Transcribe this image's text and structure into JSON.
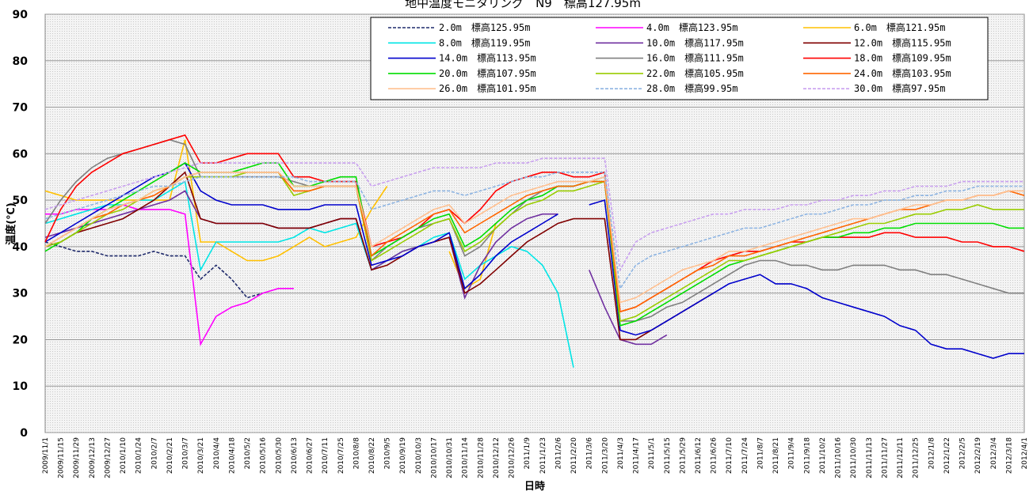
{
  "chart_data": {
    "type": "line",
    "title": "地中温度モニタリング　N9　標高127.95m",
    "x_label": "日時",
    "y_label": "温度(℃)",
    "ylim": [
      0,
      90
    ],
    "yticks": [
      0,
      10,
      20,
      30,
      40,
      50,
      60,
      70,
      80,
      90
    ],
    "grid": true,
    "categories": [
      "2009/11/1",
      "2009/11/15",
      "2009/11/29",
      "2009/12/13",
      "2009/12/27",
      "2010/1/10",
      "2010/1/24",
      "2010/2/7",
      "2010/2/21",
      "2010/3/7",
      "2010/3/21",
      "2010/4/4",
      "2010/4/18",
      "2010/5/2",
      "2010/5/16",
      "2010/5/30",
      "2010/6/13",
      "2010/6/27",
      "2010/7/11",
      "2010/7/25",
      "2010/8/8",
      "2010/8/22",
      "2010/9/5",
      "2010/9/19",
      "2010/10/3",
      "2010/10/17",
      "2010/10/31",
      "2010/11/14",
      "2010/11/28",
      "2010/12/12",
      "2010/12/26",
      "2011/1/9",
      "2011/1/23",
      "2011/2/6",
      "2011/2/20",
      "2011/3/6",
      "2011/3/20",
      "2011/4/3",
      "2011/4/17",
      "2011/5/1",
      "2011/5/15",
      "2011/5/29",
      "2011/6/12",
      "2011/6/26",
      "2011/7/10",
      "2011/7/24",
      "2011/8/7",
      "2011/8/21",
      "2011/9/4",
      "2011/9/18",
      "2011/10/2",
      "2011/10/16",
      "2011/10/30",
      "2011/11/13",
      "2011/11/27",
      "2011/12/11",
      "2011/12/25",
      "2012/1/8",
      "2012/1/22",
      "2012/2/5",
      "2012/2/19",
      "2012/3/4",
      "2012/3/18",
      "2012/4/1"
    ],
    "series": [
      {
        "name": "2.0m　標高125.95m",
        "color": "#1f2a6b",
        "dashed": true,
        "values": [
          41,
          40,
          39,
          39,
          38,
          38,
          38,
          39,
          38,
          38,
          33,
          36,
          33,
          29,
          30,
          null,
          null,
          null,
          null,
          null,
          null,
          null,
          null,
          null,
          null,
          null,
          null,
          null,
          null,
          null,
          null,
          null,
          null,
          null,
          null,
          null,
          null,
          null,
          null,
          null,
          null,
          null,
          null,
          null,
          null,
          null,
          null,
          null,
          null,
          null,
          null,
          null,
          null,
          null,
          null,
          null,
          null,
          null,
          null,
          null,
          null,
          null,
          null,
          null
        ]
      },
      {
        "name": "4.0m　標高123.95m",
        "color": "#ff00ff",
        "dashed": false,
        "values": [
          47,
          47,
          48,
          48,
          48,
          49,
          48,
          48,
          48,
          47,
          19,
          25,
          27,
          28,
          30,
          31,
          31,
          null,
          null,
          null,
          null,
          null,
          null,
          null,
          null,
          null,
          null,
          null,
          null,
          null,
          null,
          null,
          null,
          null,
          null,
          null,
          null,
          null,
          null,
          null,
          null,
          null,
          null,
          null,
          null,
          null,
          null,
          null,
          null,
          null,
          null,
          null,
          null,
          null,
          null,
          null,
          null,
          null,
          null,
          null,
          null,
          null,
          null,
          null
        ]
      },
      {
        "name": "6.0m　標高121.95m",
        "color": "#ffc000",
        "dashed": false,
        "values": [
          52,
          51,
          50,
          50,
          50,
          50,
          50,
          50,
          50,
          63,
          41,
          41,
          39,
          37,
          37,
          38,
          40,
          42,
          40,
          41,
          42,
          48,
          53,
          null,
          null,
          null,
          39,
          31,
          33,
          45,
          null,
          null,
          null,
          null,
          null,
          null,
          null,
          null,
          null,
          null,
          null,
          null,
          null,
          null,
          null,
          null,
          null,
          null,
          null,
          null,
          null,
          null,
          null,
          null,
          null,
          null,
          null,
          null,
          null,
          null,
          null,
          null,
          null,
          null
        ]
      },
      {
        "name": "8.0m　標高119.95m",
        "color": "#00e5e5",
        "dashed": false,
        "values": [
          45,
          46,
          47,
          48,
          49,
          49,
          50,
          50,
          52,
          54,
          35,
          41,
          41,
          41,
          41,
          41,
          42,
          44,
          43,
          44,
          45,
          35,
          37,
          39,
          40,
          42,
          43,
          33,
          36,
          38,
          40,
          39,
          36,
          30,
          14,
          null,
          null,
          null,
          null,
          null,
          null,
          null,
          null,
          null,
          null,
          null,
          null,
          null,
          null,
          null,
          null,
          null,
          null,
          null,
          null,
          null,
          null,
          null,
          null,
          null,
          null,
          null,
          null,
          null
        ]
      },
      {
        "name": "10.0m　標高117.95m",
        "color": "#7030a0",
        "dashed": false,
        "values": [
          42,
          43,
          44,
          45,
          46,
          47,
          48,
          49,
          50,
          52,
          46,
          45,
          45,
          45,
          45,
          44,
          44,
          44,
          45,
          46,
          46,
          35,
          37,
          39,
          40,
          41,
          42,
          29,
          36,
          41,
          44,
          46,
          47,
          47,
          null,
          35,
          27,
          20,
          19,
          19,
          21,
          null,
          null,
          null,
          null,
          null,
          null,
          null,
          null,
          null,
          null,
          null,
          null,
          null,
          null,
          null,
          null,
          null,
          null,
          null,
          null,
          null,
          null,
          null
        ]
      },
      {
        "name": "12.0m　標高115.95m",
        "color": "#800000",
        "dashed": false,
        "values": [
          40,
          41,
          43,
          44,
          45,
          46,
          48,
          50,
          53,
          56,
          46,
          45,
          45,
          45,
          45,
          44,
          44,
          44,
          45,
          46,
          46,
          35,
          36,
          38,
          40,
          41,
          42,
          30,
          32,
          35,
          38,
          41,
          43,
          45,
          46,
          46,
          46,
          20,
          20,
          22,
          24,
          26,
          28,
          30,
          null,
          null,
          null,
          null,
          null,
          null,
          null,
          null,
          null,
          null,
          null,
          null,
          null,
          null,
          null,
          null,
          null,
          null,
          null,
          null
        ]
      },
      {
        "name": "14.0m　標高113.95m",
        "color": "#0000cc",
        "dashed": false,
        "values": [
          41,
          43,
          45,
          47,
          49,
          51,
          53,
          55,
          56,
          58,
          52,
          50,
          49,
          49,
          49,
          48,
          48,
          48,
          49,
          49,
          49,
          36,
          37,
          38,
          40,
          41,
          43,
          31,
          34,
          38,
          41,
          43,
          45,
          47,
          null,
          49,
          50,
          22,
          21,
          22,
          24,
          26,
          28,
          30,
          32,
          33,
          34,
          32,
          32,
          31,
          29,
          28,
          27,
          26,
          25,
          23,
          22,
          19,
          18,
          18,
          17,
          16,
          17,
          17
        ]
      },
      {
        "name": "16.0m　標高111.95m",
        "color": "#808080",
        "dashed": false,
        "values": [
          45,
          50,
          54,
          57,
          59,
          60,
          61,
          62,
          63,
          62,
          55,
          55,
          55,
          55,
          55,
          55,
          54,
          53,
          53,
          53,
          53,
          37,
          40,
          42,
          44,
          45,
          46,
          38,
          40,
          44,
          47,
          50,
          52,
          53,
          53,
          54,
          55,
          24,
          24,
          25,
          27,
          28,
          30,
          32,
          34,
          36,
          37,
          37,
          36,
          36,
          35,
          35,
          36,
          36,
          36,
          35,
          35,
          34,
          34,
          33,
          32,
          31,
          30,
          30
        ]
      },
      {
        "name": "18.0m　標高109.95m",
        "color": "#ff0000",
        "dashed": false,
        "values": [
          41,
          48,
          53,
          56,
          58,
          60,
          61,
          62,
          63,
          64,
          58,
          58,
          59,
          60,
          60,
          60,
          55,
          55,
          54,
          54,
          54,
          40,
          41,
          42,
          44,
          47,
          48,
          45,
          48,
          52,
          54,
          55,
          56,
          56,
          55,
          55,
          56,
          26,
          27,
          29,
          31,
          33,
          35,
          37,
          38,
          39,
          39,
          40,
          41,
          41,
          42,
          42,
          42,
          42,
          43,
          43,
          42,
          42,
          42,
          41,
          41,
          40,
          40,
          39
        ]
      },
      {
        "name": "20.0m　標高107.95m",
        "color": "#00dd00",
        "dashed": false,
        "values": [
          39,
          41,
          43,
          46,
          48,
          50,
          52,
          54,
          56,
          58,
          56,
          56,
          56,
          57,
          58,
          58,
          53,
          53,
          54,
          55,
          55,
          38,
          40,
          42,
          44,
          46,
          47,
          40,
          42,
          45,
          48,
          50,
          51,
          53,
          53,
          54,
          54,
          23,
          24,
          26,
          28,
          30,
          32,
          34,
          36,
          37,
          38,
          39,
          40,
          41,
          42,
          42,
          43,
          43,
          44,
          44,
          45,
          45,
          45,
          45,
          45,
          45,
          44,
          44
        ]
      },
      {
        "name": "22.0m　標高105.95m",
        "color": "#99cc00",
        "dashed": false,
        "values": [
          40,
          41,
          43,
          45,
          47,
          48,
          50,
          52,
          53,
          55,
          55,
          55,
          55,
          56,
          56,
          56,
          51,
          52,
          53,
          53,
          53,
          37,
          39,
          41,
          43,
          45,
          46,
          39,
          41,
          44,
          47,
          49,
          50,
          52,
          52,
          53,
          54,
          24,
          25,
          27,
          29,
          31,
          33,
          35,
          37,
          37,
          38,
          39,
          40,
          41,
          42,
          43,
          44,
          45,
          45,
          46,
          47,
          47,
          48,
          48,
          49,
          48,
          48,
          48
        ]
      },
      {
        "name": "24.0m　標高103.95m",
        "color": "#ff6600",
        "dashed": false,
        "values": [
          40,
          42,
          44,
          46,
          47,
          49,
          50,
          51,
          53,
          55,
          56,
          56,
          56,
          56,
          56,
          56,
          52,
          52,
          53,
          53,
          53,
          38,
          41,
          43,
          45,
          47,
          48,
          43,
          45,
          47,
          49,
          51,
          52,
          53,
          53,
          54,
          54,
          26,
          27,
          29,
          31,
          33,
          35,
          36,
          38,
          38,
          39,
          40,
          41,
          42,
          43,
          44,
          45,
          46,
          47,
          48,
          48,
          49,
          50,
          50,
          51,
          51,
          52,
          51
        ]
      },
      {
        "name": "26.0m　標高101.95m",
        "color": "#ffc090",
        "dashed": false,
        "values": [
          40,
          42,
          44,
          46,
          48,
          49,
          50,
          52,
          53,
          55,
          56,
          56,
          56,
          56,
          56,
          56,
          53,
          53,
          53,
          53,
          53,
          40,
          42,
          44,
          46,
          48,
          49,
          45,
          47,
          49,
          51,
          52,
          53,
          54,
          54,
          54,
          55,
          28,
          29,
          31,
          33,
          35,
          36,
          37,
          39,
          39,
          40,
          41,
          42,
          43,
          44,
          45,
          46,
          46,
          47,
          48,
          49,
          49,
          50,
          50,
          51,
          51,
          52,
          52
        ]
      },
      {
        "name": "28.0m　標高99.95m",
        "color": "#8db4e2",
        "dashed": true,
        "values": [
          46,
          47,
          48,
          49,
          50,
          51,
          52,
          53,
          53,
          54,
          55,
          55,
          55,
          55,
          55,
          55,
          55,
          54,
          54,
          54,
          54,
          48,
          49,
          50,
          51,
          52,
          52,
          51,
          52,
          53,
          54,
          55,
          55,
          56,
          56,
          56,
          56,
          31,
          36,
          38,
          39,
          40,
          41,
          42,
          43,
          44,
          44,
          45,
          46,
          47,
          47,
          48,
          49,
          49,
          50,
          50,
          51,
          51,
          52,
          52,
          53,
          53,
          53,
          53
        ]
      },
      {
        "name": "30.0m　標高97.95m",
        "color": "#c9a0f0",
        "dashed": true,
        "values": [
          48,
          49,
          50,
          51,
          52,
          53,
          54,
          55,
          56,
          57,
          58,
          58,
          58,
          58,
          58,
          58,
          58,
          58,
          58,
          58,
          58,
          53,
          54,
          55,
          56,
          57,
          57,
          57,
          57,
          58,
          58,
          58,
          59,
          59,
          59,
          59,
          59,
          35,
          41,
          43,
          44,
          45,
          46,
          47,
          47,
          48,
          48,
          48,
          49,
          49,
          50,
          50,
          51,
          51,
          52,
          52,
          53,
          53,
          53,
          54,
          54,
          54,
          54,
          54
        ]
      }
    ]
  }
}
